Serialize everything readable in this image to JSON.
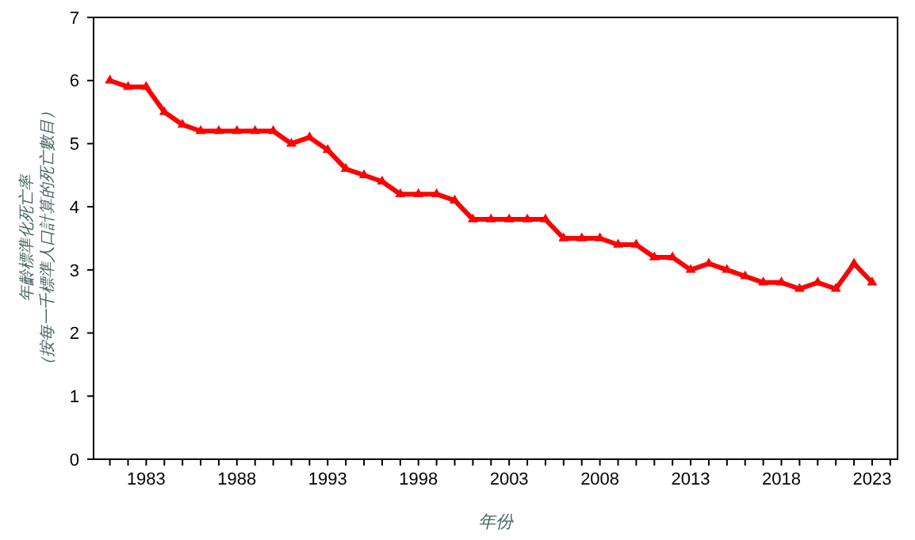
{
  "chart_data": {
    "type": "line",
    "xlabel": "年份",
    "ylabel": "年齡標準化死亡率（按每一千標準人口計算的死亡數目）",
    "x": [
      1981,
      1982,
      1983,
      1984,
      1985,
      1986,
      1987,
      1988,
      1989,
      1990,
      1991,
      1992,
      1993,
      1994,
      1995,
      1996,
      1997,
      1998,
      1999,
      2000,
      2001,
      2002,
      2003,
      2004,
      2005,
      2006,
      2007,
      2008,
      2009,
      2010,
      2011,
      2012,
      2013,
      2014,
      2015,
      2016,
      2017,
      2018,
      2019,
      2020,
      2021,
      2022,
      2023
    ],
    "series": [
      {
        "color": "#ff0000",
        "values": [
          6.0,
          5.9,
          5.9,
          5.5,
          5.3,
          5.2,
          5.2,
          5.2,
          5.2,
          5.2,
          5.0,
          5.1,
          4.9,
          4.6,
          4.5,
          4.4,
          4.2,
          4.2,
          4.2,
          4.1,
          3.8,
          3.8,
          3.8,
          3.8,
          3.8,
          3.5,
          3.5,
          3.5,
          3.4,
          3.4,
          3.2,
          3.2,
          3.0,
          3.1,
          3.0,
          2.9,
          2.8,
          2.8,
          2.7,
          2.8,
          2.7,
          3.1,
          2.8
        ]
      }
    ],
    "xlim": [
      1980.1,
      2024.4
    ],
    "xticks": [
      1983,
      1988,
      1993,
      1998,
      2003,
      2008,
      2013,
      2018,
      2023
    ],
    "ylim": [
      0,
      7
    ],
    "yticks": [
      0,
      1,
      2,
      3,
      4,
      5,
      6,
      7
    ],
    "grid": false,
    "marker": "triangle",
    "line_style": "solid"
  }
}
